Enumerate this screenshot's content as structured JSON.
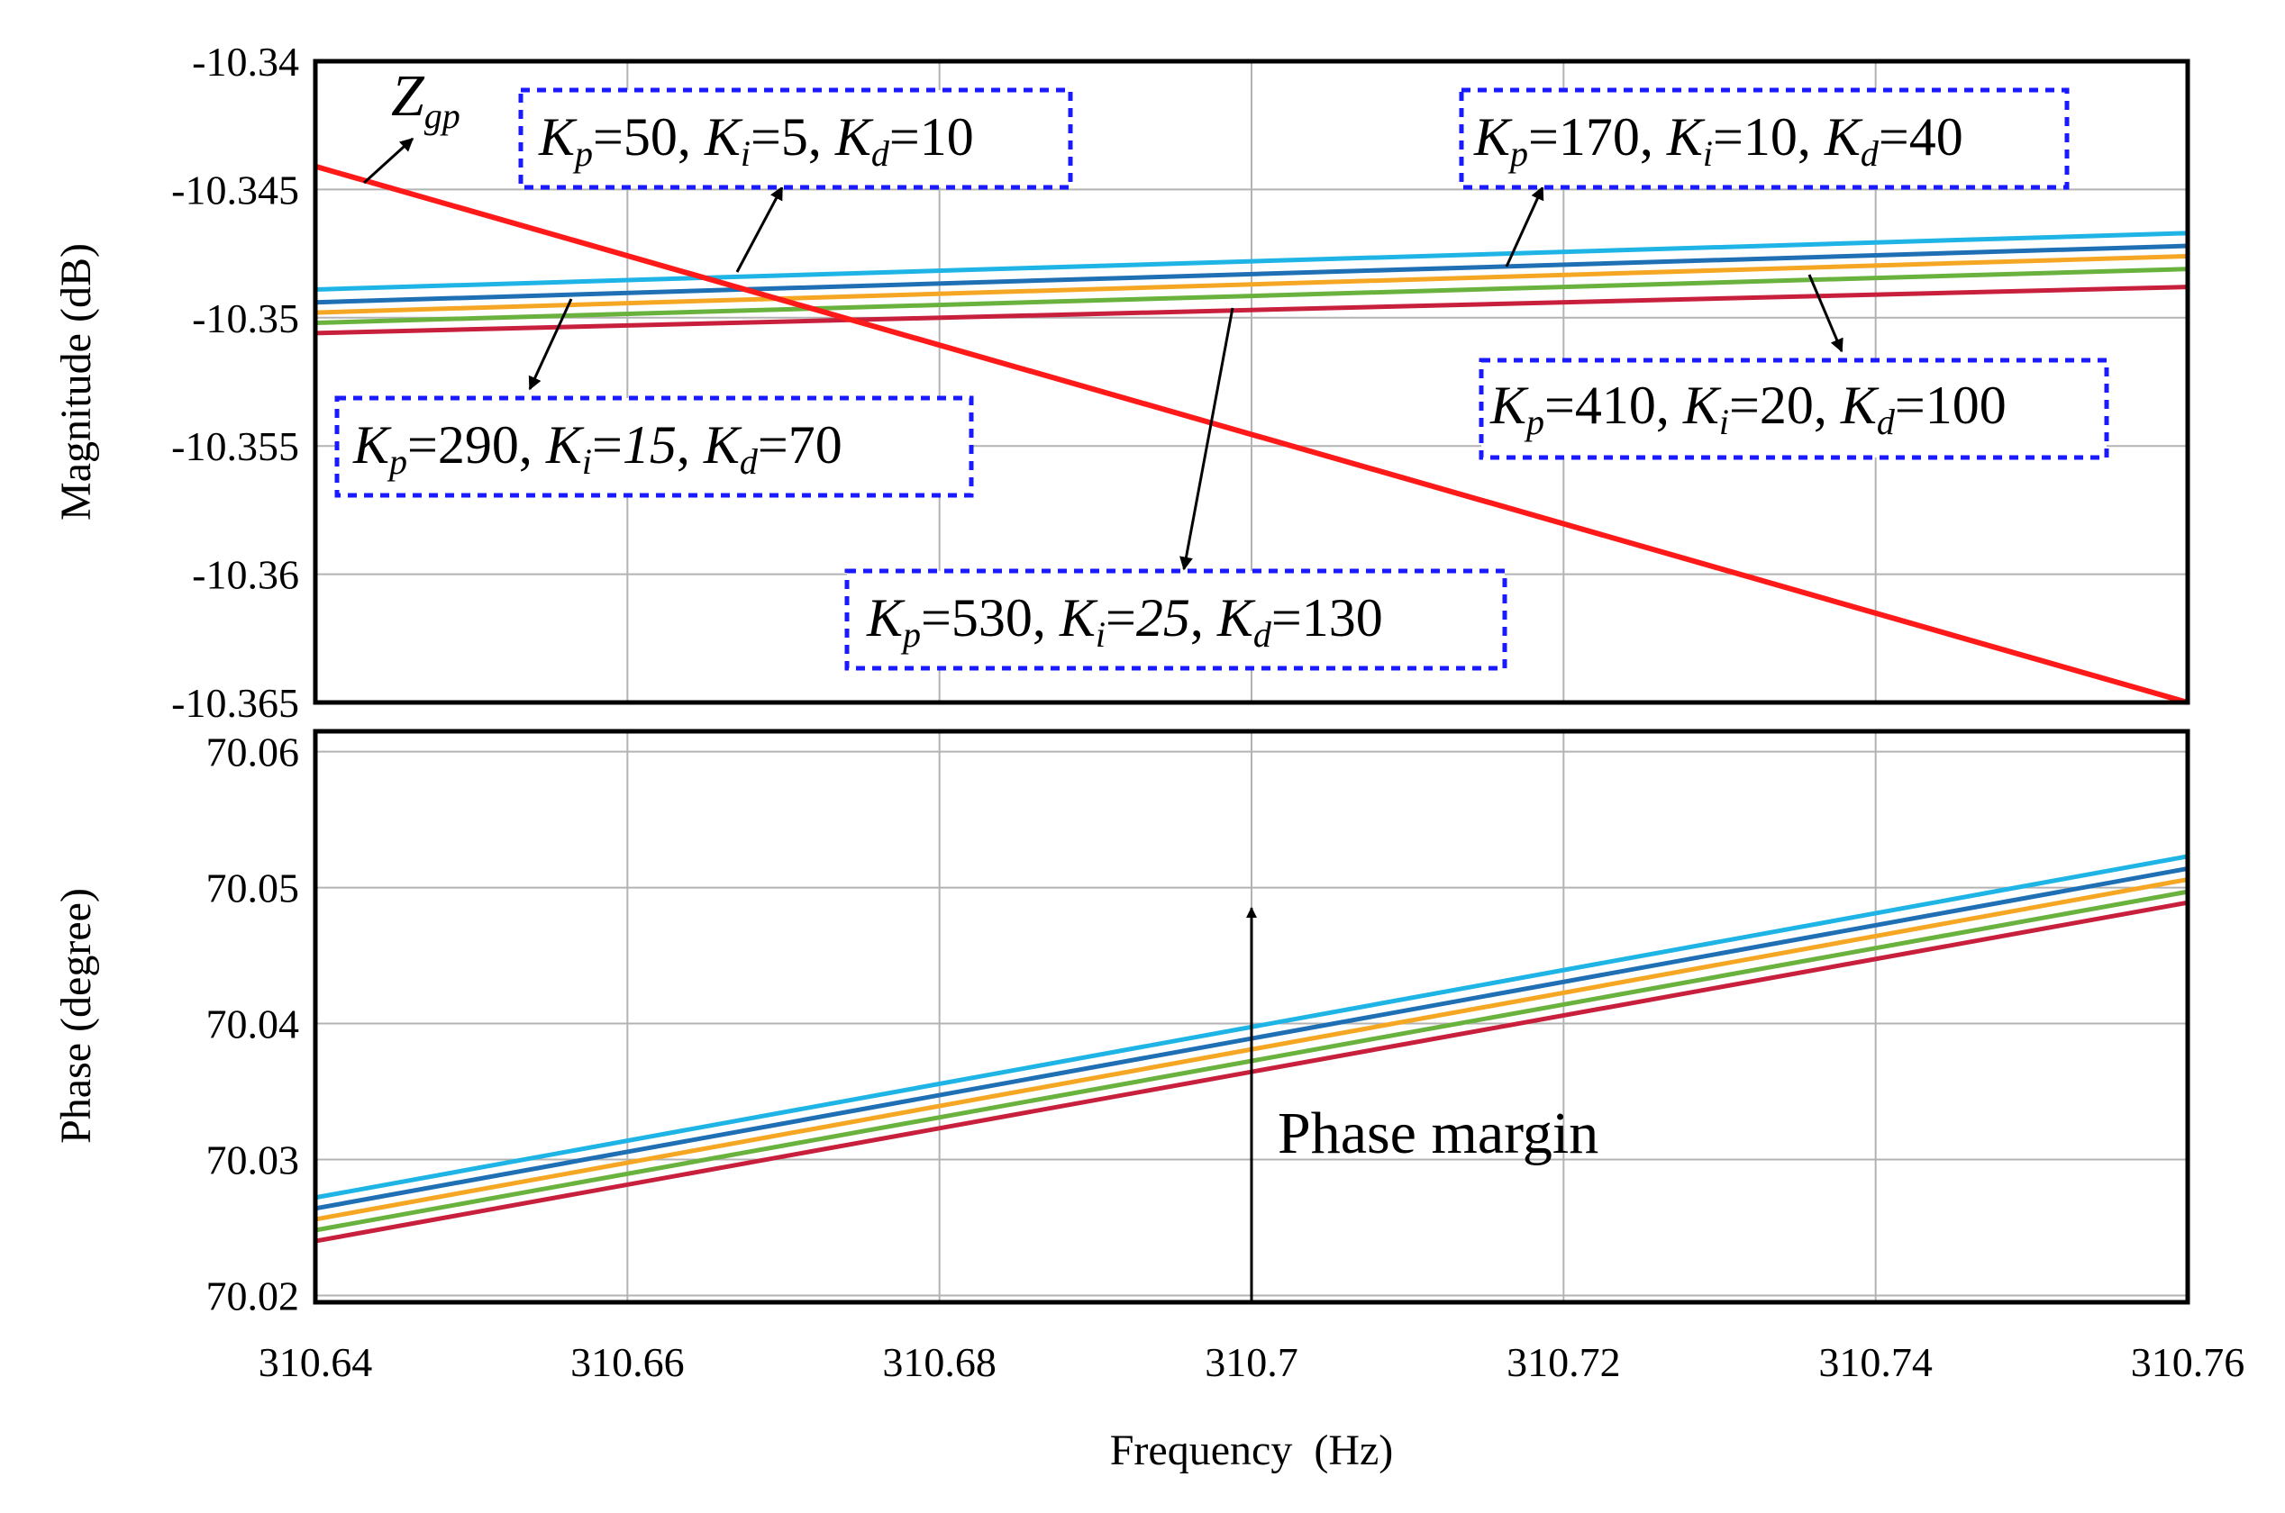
{
  "chart_data": [
    {
      "type": "line",
      "panel": "magnitude",
      "xlabel": "",
      "ylabel": "Magnitude (dB)",
      "xlim": [
        310.64,
        310.76
      ],
      "ylim": [
        -10.365,
        -10.34
      ],
      "yticks": [
        -10.34,
        -10.345,
        -10.35,
        -10.355,
        -10.36,
        -10.365
      ],
      "yticklabels": [
        "-10.34",
        "-10.345",
        "-10.35",
        "-10.355",
        "-10.36",
        "-10.365"
      ],
      "xgrid": [
        310.64,
        310.66,
        310.68,
        310.7,
        310.72,
        310.74,
        310.76
      ],
      "grid": true,
      "series": [
        {
          "name": "Kp=50, Ki=5, Kd=10",
          "color": "#1eb4e6",
          "x": [
            310.64,
            310.76
          ],
          "y": [
            -10.3489,
            -10.3467
          ]
        },
        {
          "name": "Kp=170, Ki=10, Kd=40",
          "color": "#1f6fb5",
          "x": [
            310.64,
            310.76
          ],
          "y": [
            -10.3494,
            -10.3472
          ]
        },
        {
          "name": "Kp=290, Ki=15, Kd=70",
          "color": "#f5a623",
          "x": [
            310.64,
            310.76
          ],
          "y": [
            -10.3498,
            -10.3476
          ]
        },
        {
          "name": "Kp=410, Ki=20, Kd=100",
          "color": "#6ab23e",
          "x": [
            310.64,
            310.76
          ],
          "y": [
            -10.3502,
            -10.3481
          ]
        },
        {
          "name": "Kp=530, Ki=25, Kd=130",
          "color": "#c8203c",
          "x": [
            310.64,
            310.76
          ],
          "y": [
            -10.3506,
            -10.3488
          ]
        },
        {
          "name": "Zgp",
          "color": "#ff1a1a",
          "x": [
            310.64,
            310.76
          ],
          "y": [
            -10.3441,
            -10.365
          ]
        }
      ],
      "annotations": {
        "zgp": {
          "main": "Z",
          "sub": "gp"
        },
        "gain_labels": [
          {
            "kp": "50",
            "ki": "5",
            "kd": "10"
          },
          {
            "kp": "170",
            "ki": "10",
            "kd": "40"
          },
          {
            "kp": "290",
            "ki": "15",
            "kd": "70"
          },
          {
            "kp": "410",
            "ki": "20",
            "kd": "100"
          },
          {
            "kp": "530",
            "ki": "25",
            "kd": "130"
          }
        ]
      }
    },
    {
      "type": "line",
      "panel": "phase",
      "xlabel": "Frequency  (Hz)",
      "ylabel": "Phase (degree)",
      "xlim": [
        310.64,
        310.76
      ],
      "ylim": [
        70.0195,
        70.0615
      ],
      "yticks": [
        70.02,
        70.03,
        70.04,
        70.05,
        70.06
      ],
      "yticklabels": [
        "70.02",
        "70.03",
        "70.04",
        "70.05",
        "70.06"
      ],
      "xticks": [
        310.64,
        310.66,
        310.68,
        310.7,
        310.72,
        310.74,
        310.76
      ],
      "xticklabels": [
        "310.64",
        "310.66",
        "310.68",
        "310.7",
        "310.72",
        "310.74",
        "310.76"
      ],
      "grid": true,
      "series": [
        {
          "name": "Kp=50, Ki=5, Kd=10",
          "color": "#1eb4e6",
          "x": [
            310.64,
            310.76
          ],
          "y": [
            70.0272,
            70.0523
          ]
        },
        {
          "name": "Kp=170, Ki=10, Kd=40",
          "color": "#1f6fb5",
          "x": [
            310.64,
            310.76
          ],
          "y": [
            70.0264,
            70.0514
          ]
        },
        {
          "name": "Kp=290, Ki=15, Kd=70",
          "color": "#f5a623",
          "x": [
            310.64,
            310.76
          ],
          "y": [
            70.0256,
            70.0506
          ]
        },
        {
          "name": "Kp=410, Ki=20, Kd=100",
          "color": "#6ab23e",
          "x": [
            310.64,
            310.76
          ],
          "y": [
            70.0248,
            70.0497
          ]
        },
        {
          "name": "Kp=530, Ki=25, Kd=130",
          "color": "#c8203c",
          "x": [
            310.64,
            310.76
          ],
          "y": [
            70.024,
            70.0489
          ]
        }
      ],
      "annotations": {
        "arrow_text": "Phase margin",
        "arrow_x": 310.7,
        "arrow_from": 70.0195,
        "arrow_to": 70.0485
      }
    }
  ]
}
